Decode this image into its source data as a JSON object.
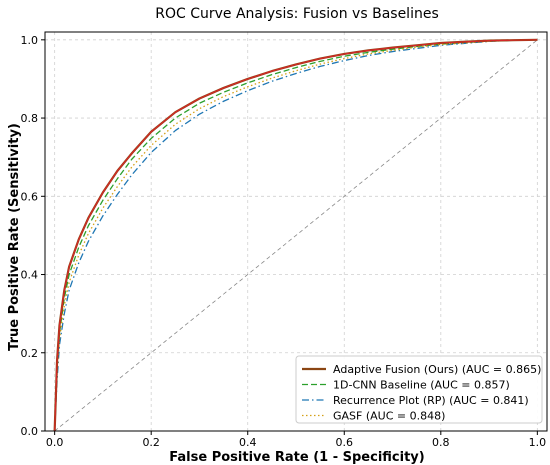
{
  "chart_data": {
    "type": "line",
    "title": "ROC Curve Analysis: Fusion vs Baselines",
    "xlabel": "False Positive Rate (1 - Specificity)",
    "ylabel": "True Positive Rate (Sensitivity)",
    "xlim": [
      -0.02,
      1.02
    ],
    "ylim": [
      0.0,
      1.02
    ],
    "x_ticks": [
      "0.0",
      "0.2",
      "0.4",
      "0.6",
      "0.8",
      "1.0"
    ],
    "y_ticks": [
      "0.0",
      "0.2",
      "0.4",
      "0.6",
      "0.8",
      "1.0"
    ],
    "grid": true,
    "legend_position": "lower-right",
    "diagonal_reference": true,
    "series": [
      {
        "name": "Adaptive Fusion (Ours) (AUC = 0.865)",
        "color": "#8B4513",
        "overlay_color": "#d62728",
        "style": "solid",
        "points": [
          [
            0,
            0
          ],
          [
            0.005,
            0.18
          ],
          [
            0.01,
            0.27
          ],
          [
            0.02,
            0.36
          ],
          [
            0.03,
            0.42
          ],
          [
            0.05,
            0.49
          ],
          [
            0.07,
            0.545
          ],
          [
            0.1,
            0.61
          ],
          [
            0.13,
            0.665
          ],
          [
            0.16,
            0.71
          ],
          [
            0.2,
            0.765
          ],
          [
            0.25,
            0.815
          ],
          [
            0.3,
            0.85
          ],
          [
            0.35,
            0.877
          ],
          [
            0.4,
            0.9
          ],
          [
            0.45,
            0.92
          ],
          [
            0.5,
            0.937
          ],
          [
            0.55,
            0.952
          ],
          [
            0.6,
            0.964
          ],
          [
            0.65,
            0.973
          ],
          [
            0.7,
            0.98
          ],
          [
            0.75,
            0.986
          ],
          [
            0.8,
            0.992
          ],
          [
            0.85,
            0.995
          ],
          [
            0.9,
            0.998
          ],
          [
            0.95,
            0.999
          ],
          [
            1.0,
            1.0
          ]
        ]
      },
      {
        "name": "1D-CNN Baseline (AUC = 0.857)",
        "color": "#2ca02c",
        "style": "dashed",
        "points": [
          [
            0,
            0
          ],
          [
            0.005,
            0.16
          ],
          [
            0.01,
            0.25
          ],
          [
            0.02,
            0.34
          ],
          [
            0.03,
            0.4
          ],
          [
            0.05,
            0.47
          ],
          [
            0.07,
            0.525
          ],
          [
            0.1,
            0.59
          ],
          [
            0.13,
            0.645
          ],
          [
            0.16,
            0.695
          ],
          [
            0.2,
            0.748
          ],
          [
            0.25,
            0.8
          ],
          [
            0.3,
            0.838
          ],
          [
            0.35,
            0.866
          ],
          [
            0.4,
            0.89
          ],
          [
            0.45,
            0.911
          ],
          [
            0.5,
            0.929
          ],
          [
            0.55,
            0.945
          ],
          [
            0.6,
            0.958
          ],
          [
            0.65,
            0.968
          ],
          [
            0.7,
            0.976
          ],
          [
            0.75,
            0.983
          ],
          [
            0.8,
            0.989
          ],
          [
            0.85,
            0.993
          ],
          [
            0.9,
            0.997
          ],
          [
            0.95,
            0.999
          ],
          [
            1.0,
            1.0
          ]
        ]
      },
      {
        "name": "Recurrence Plot (RP) (AUC = 0.841)",
        "color": "#1f77b4",
        "style": "dashdot",
        "points": [
          [
            0,
            0
          ],
          [
            0.005,
            0.13
          ],
          [
            0.01,
            0.22
          ],
          [
            0.02,
            0.3
          ],
          [
            0.03,
            0.36
          ],
          [
            0.05,
            0.43
          ],
          [
            0.07,
            0.485
          ],
          [
            0.1,
            0.55
          ],
          [
            0.13,
            0.605
          ],
          [
            0.16,
            0.655
          ],
          [
            0.2,
            0.712
          ],
          [
            0.25,
            0.768
          ],
          [
            0.3,
            0.81
          ],
          [
            0.35,
            0.843
          ],
          [
            0.4,
            0.87
          ],
          [
            0.45,
            0.894
          ],
          [
            0.5,
            0.914
          ],
          [
            0.55,
            0.932
          ],
          [
            0.6,
            0.947
          ],
          [
            0.65,
            0.96
          ],
          [
            0.7,
            0.97
          ],
          [
            0.75,
            0.978
          ],
          [
            0.8,
            0.986
          ],
          [
            0.85,
            0.991
          ],
          [
            0.9,
            0.996
          ],
          [
            0.95,
            0.999
          ],
          [
            1.0,
            1.0
          ]
        ]
      },
      {
        "name": "GASF (AUC = 0.848)",
        "color": "#d4a017",
        "style": "dotted",
        "points": [
          [
            0,
            0
          ],
          [
            0.005,
            0.15
          ],
          [
            0.01,
            0.235
          ],
          [
            0.02,
            0.32
          ],
          [
            0.03,
            0.38
          ],
          [
            0.05,
            0.45
          ],
          [
            0.07,
            0.505
          ],
          [
            0.1,
            0.57
          ],
          [
            0.13,
            0.625
          ],
          [
            0.16,
            0.675
          ],
          [
            0.2,
            0.73
          ],
          [
            0.25,
            0.784
          ],
          [
            0.3,
            0.824
          ],
          [
            0.35,
            0.855
          ],
          [
            0.4,
            0.88
          ],
          [
            0.45,
            0.902
          ],
          [
            0.5,
            0.921
          ],
          [
            0.55,
            0.938
          ],
          [
            0.6,
            0.952
          ],
          [
            0.65,
            0.964
          ],
          [
            0.7,
            0.973
          ],
          [
            0.75,
            0.981
          ],
          [
            0.8,
            0.988
          ],
          [
            0.85,
            0.992
          ],
          [
            0.9,
            0.996
          ],
          [
            0.95,
            0.999
          ],
          [
            1.0,
            1.0
          ]
        ]
      }
    ]
  }
}
